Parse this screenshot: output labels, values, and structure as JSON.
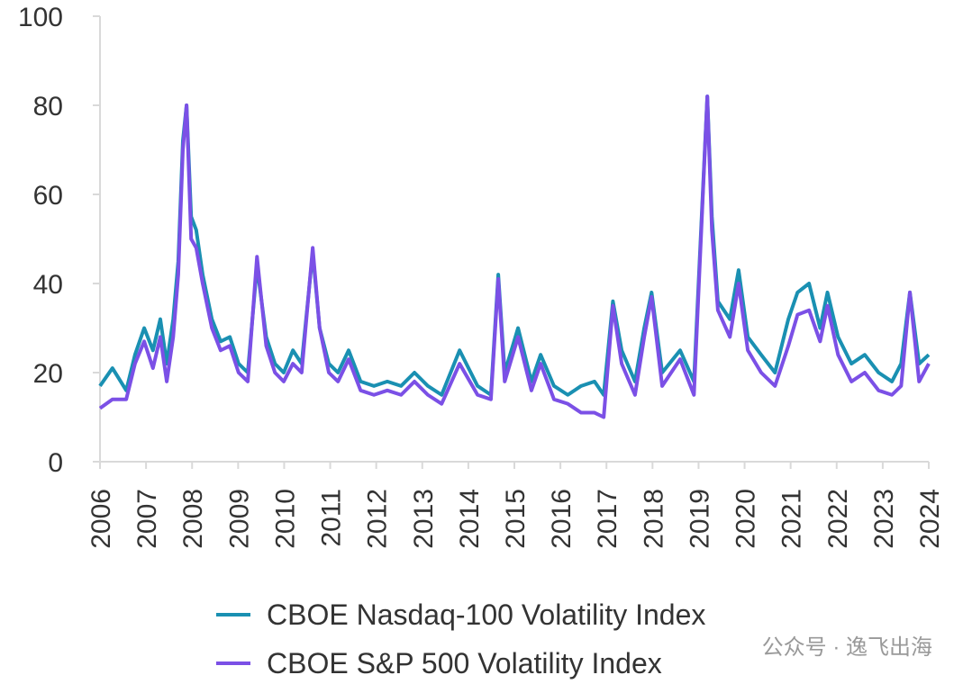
{
  "chart_data": {
    "type": "line",
    "x": [
      2006.0,
      2006.27,
      2006.57,
      2006.76,
      2006.96,
      2007.15,
      2007.31,
      2007.45,
      2007.59,
      2007.7,
      2007.8,
      2007.88,
      2007.98,
      2008.09,
      2008.23,
      2008.43,
      2008.62,
      2008.82,
      2009.01,
      2009.21,
      2009.41,
      2009.61,
      2009.8,
      2009.99,
      2010.19,
      2010.38,
      2010.62,
      2010.77,
      2010.97,
      2011.17,
      2011.4,
      2011.66,
      2011.95,
      2012.24,
      2012.54,
      2012.83,
      2013.12,
      2013.42,
      2013.81,
      2014.2,
      2014.49,
      2014.65,
      2014.79,
      2015.08,
      2015.37,
      2015.57,
      2015.86,
      2016.16,
      2016.45,
      2016.74,
      2016.94,
      2017.14,
      2017.33,
      2017.62,
      2017.82,
      2017.98,
      2018.21,
      2018.6,
      2018.9,
      2019.19,
      2019.29,
      2019.42,
      2019.68,
      2019.87,
      2020.07,
      2020.36,
      2020.66,
      2020.95,
      2021.15,
      2021.4,
      2021.64,
      2021.8,
      2022.03,
      2022.32,
      2022.61,
      2022.91,
      2023.2,
      2023.4,
      2023.59,
      2023.79,
      2024.0
    ],
    "series": [
      {
        "name": "CBOE Nasdaq-100 Volatility Index",
        "color": "#1a90b2",
        "values": [
          17,
          21,
          16,
          24,
          30,
          25,
          32,
          22,
          32,
          45,
          72,
          80,
          55,
          52,
          42,
          32,
          27,
          28,
          22,
          20,
          44,
          28,
          22,
          20,
          25,
          22,
          47,
          30,
          22,
          20,
          25,
          18,
          17,
          18,
          17,
          20,
          17,
          15,
          25,
          17,
          15,
          42,
          20,
          30,
          18,
          24,
          17,
          15,
          17,
          18,
          15,
          36,
          25,
          18,
          30,
          38,
          20,
          25,
          18,
          82,
          55,
          36,
          32,
          43,
          28,
          24,
          20,
          32,
          38,
          40,
          30,
          38,
          28,
          22,
          24,
          20,
          18,
          22,
          38,
          22,
          24
        ]
      },
      {
        "name": "CBOE S&P 500 Volatility Index",
        "color": "#7b50e6",
        "values": [
          12,
          14,
          14,
          22,
          27,
          21,
          28,
          18,
          28,
          42,
          70,
          80,
          50,
          48,
          40,
          30,
          25,
          26,
          20,
          18,
          46,
          26,
          20,
          18,
          22,
          20,
          48,
          30,
          20,
          18,
          23,
          16,
          15,
          16,
          15,
          18,
          15,
          13,
          22,
          15,
          14,
          41,
          18,
          28,
          16,
          22,
          14,
          13,
          11,
          11,
          10,
          35,
          22,
          15,
          28,
          37,
          17,
          23,
          15,
          82,
          52,
          34,
          28,
          40,
          25,
          20,
          17,
          26,
          33,
          34,
          27,
          35,
          24,
          18,
          20,
          16,
          15,
          17,
          38,
          18,
          22
        ]
      }
    ],
    "xlim": [
      2006,
      2024
    ],
    "xticks": [
      2006,
      2007,
      2008,
      2009,
      2010,
      2011,
      2012,
      2013,
      2014,
      2015,
      2016,
      2017,
      2018,
      2019,
      2020,
      2021,
      2022,
      2023,
      2024
    ],
    "ylim": [
      0,
      100
    ],
    "yticks": [
      0,
      20,
      40,
      60,
      80,
      100
    ],
    "grid": false,
    "legend": "bottom",
    "watermark": "公众号 · 逸飞出海"
  }
}
